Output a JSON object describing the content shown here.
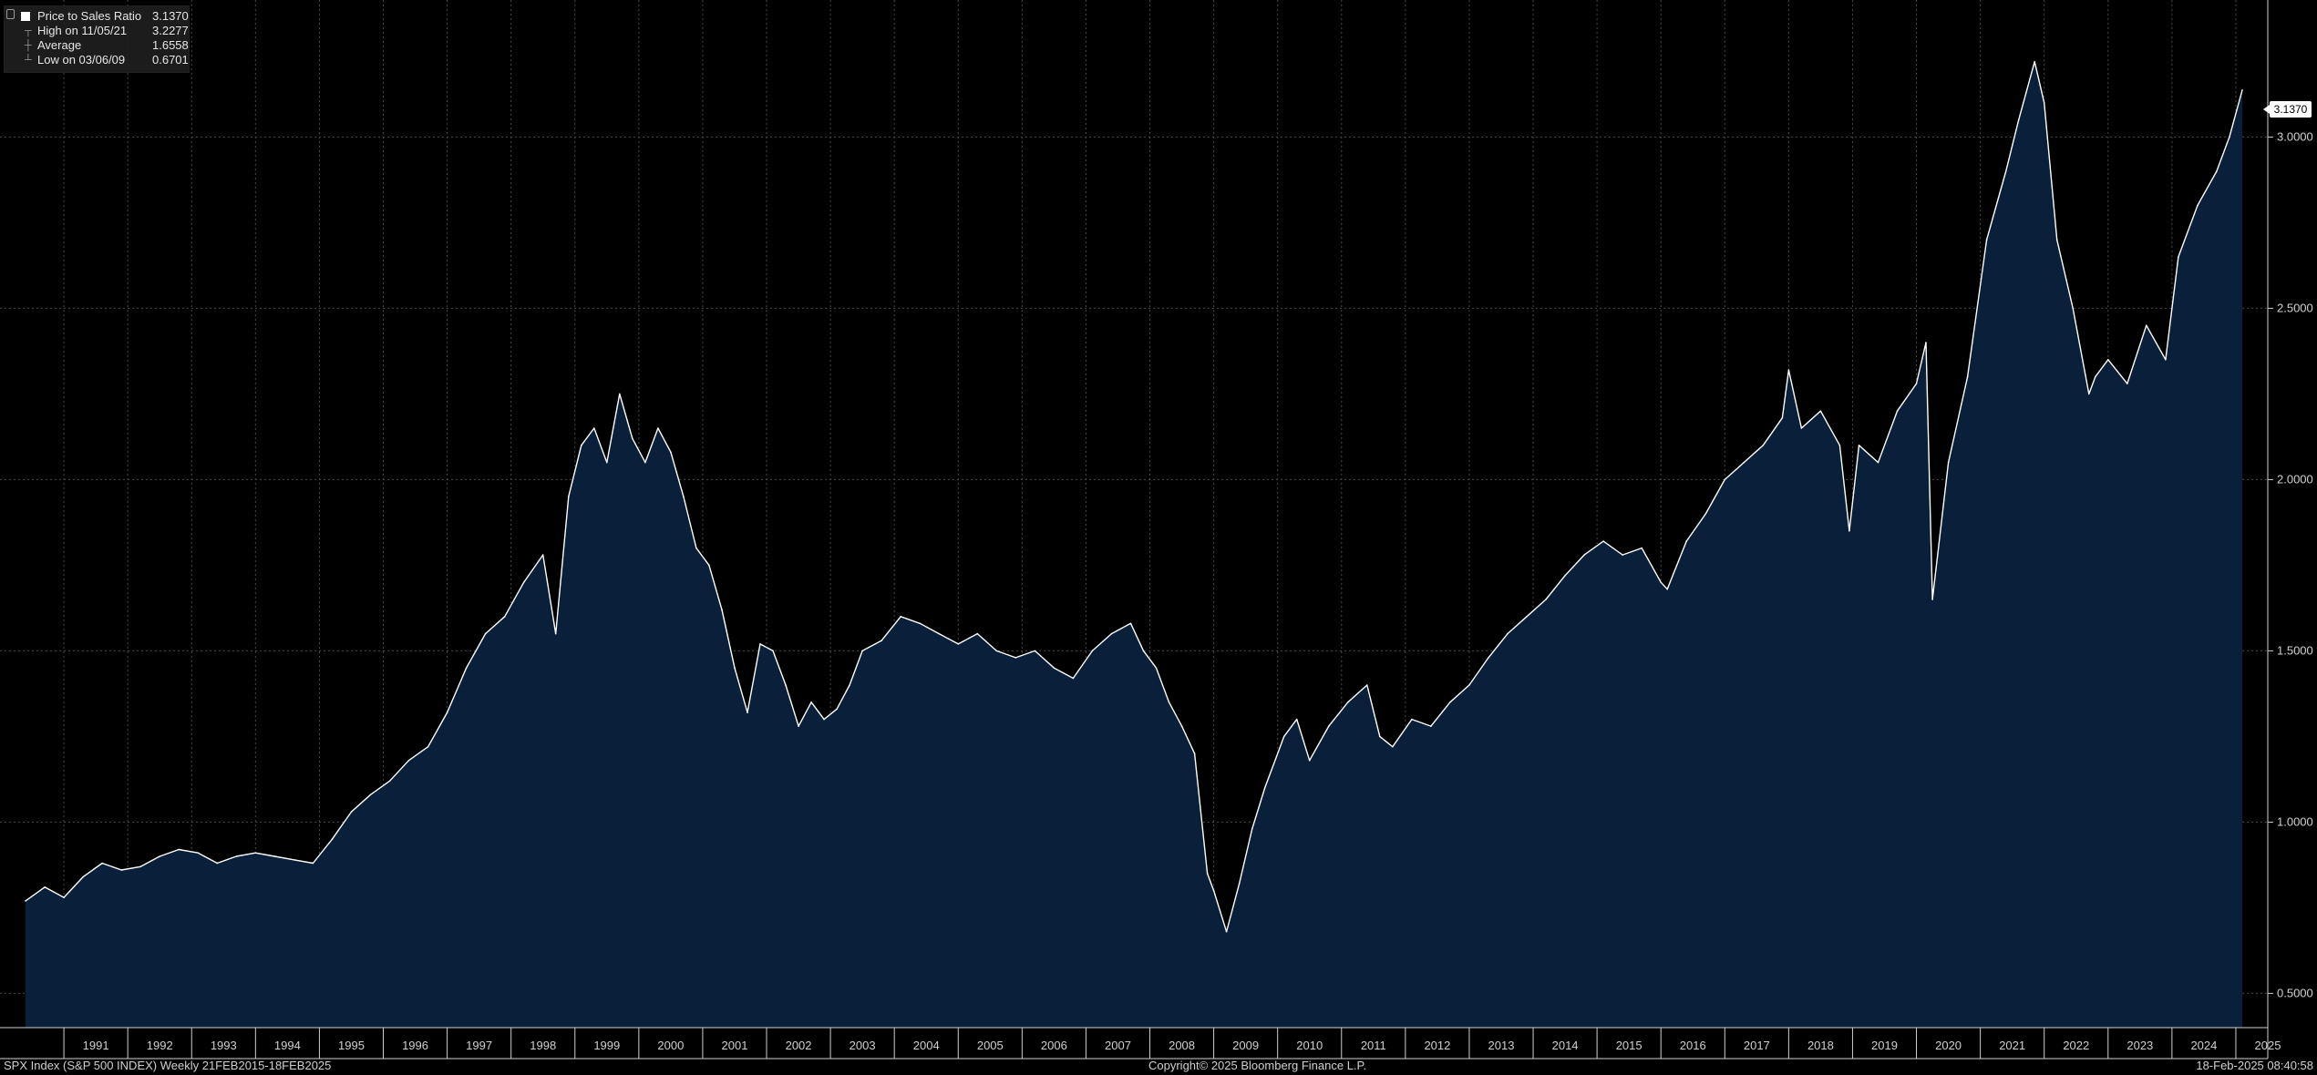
{
  "legend": {
    "series": {
      "label": "Price to Sales Ratio",
      "value": "3.1370"
    },
    "high": {
      "label": "High on 11/05/21",
      "value": "3.2277"
    },
    "average": {
      "label": "Average",
      "value": "1.6558"
    },
    "low": {
      "label": "Low on 03/06/09",
      "value": "0.6701"
    }
  },
  "last_value_badge": "3.1370",
  "footer": {
    "left": "SPX Index (S&P 500 INDEX)  Weekly 21FEB2015-18FEB2025",
    "center": "Copyright© 2025 Bloomberg Finance L.P.",
    "right": "18-Feb-2025 08:40:58"
  },
  "colors": {
    "background": "#000000",
    "area_fill": "#0a1f3a",
    "line": "#ffffff",
    "grid": "#4a4a4a",
    "axis": "#cfcfcf"
  },
  "chart_data": {
    "type": "area",
    "series": [
      {
        "name": "Price to Sales Ratio",
        "x": [
          1990.4,
          1990.7,
          1991.0,
          1991.3,
          1991.6,
          1991.9,
          1992.2,
          1992.5,
          1992.8,
          1993.1,
          1993.4,
          1993.7,
          1994.0,
          1994.3,
          1994.6,
          1994.9,
          1995.2,
          1995.5,
          1995.8,
          1996.1,
          1996.4,
          1996.7,
          1997.0,
          1997.3,
          1997.6,
          1997.9,
          1998.2,
          1998.5,
          1998.7,
          1998.9,
          1999.1,
          1999.3,
          1999.5,
          1999.7,
          1999.9,
          2000.1,
          2000.3,
          2000.5,
          2000.7,
          2000.9,
          2001.1,
          2001.3,
          2001.5,
          2001.7,
          2001.9,
          2002.1,
          2002.3,
          2002.5,
          2002.7,
          2002.9,
          2003.1,
          2003.3,
          2003.5,
          2003.8,
          2004.1,
          2004.4,
          2004.7,
          2005.0,
          2005.3,
          2005.6,
          2005.9,
          2006.2,
          2006.5,
          2006.8,
          2007.1,
          2007.4,
          2007.7,
          2007.9,
          2008.1,
          2008.3,
          2008.5,
          2008.7,
          2008.9,
          2009.0,
          2009.2,
          2009.4,
          2009.6,
          2009.8,
          2010.1,
          2010.3,
          2010.5,
          2010.8,
          2011.1,
          2011.4,
          2011.6,
          2011.8,
          2012.1,
          2012.4,
          2012.7,
          2013.0,
          2013.3,
          2013.6,
          2013.9,
          2014.2,
          2014.5,
          2014.8,
          2015.1,
          2015.4,
          2015.7,
          2016.0,
          2016.1,
          2016.4,
          2016.7,
          2017.0,
          2017.3,
          2017.6,
          2017.9,
          2018.0,
          2018.2,
          2018.5,
          2018.8,
          2018.95,
          2019.1,
          2019.4,
          2019.7,
          2020.0,
          2020.15,
          2020.25,
          2020.5,
          2020.8,
          2021.1,
          2021.4,
          2021.6,
          2021.85,
          2022.0,
          2022.2,
          2022.45,
          2022.7,
          2022.8,
          2023.0,
          2023.3,
          2023.6,
          2023.9,
          2024.1,
          2024.4,
          2024.7,
          2024.9,
          2025.1
        ],
        "values": [
          0.77,
          0.81,
          0.78,
          0.84,
          0.88,
          0.86,
          0.87,
          0.9,
          0.92,
          0.91,
          0.88,
          0.9,
          0.91,
          0.9,
          0.89,
          0.88,
          0.95,
          1.03,
          1.08,
          1.12,
          1.18,
          1.22,
          1.32,
          1.45,
          1.55,
          1.6,
          1.7,
          1.78,
          1.55,
          1.95,
          2.1,
          2.15,
          2.05,
          2.25,
          2.12,
          2.05,
          2.15,
          2.08,
          1.95,
          1.8,
          1.75,
          1.62,
          1.45,
          1.32,
          1.52,
          1.5,
          1.4,
          1.28,
          1.35,
          1.3,
          1.33,
          1.4,
          1.5,
          1.53,
          1.6,
          1.58,
          1.55,
          1.52,
          1.55,
          1.5,
          1.48,
          1.5,
          1.45,
          1.42,
          1.5,
          1.55,
          1.58,
          1.5,
          1.45,
          1.35,
          1.28,
          1.2,
          0.85,
          0.8,
          0.68,
          0.82,
          0.98,
          1.1,
          1.25,
          1.3,
          1.18,
          1.28,
          1.35,
          1.4,
          1.25,
          1.22,
          1.3,
          1.28,
          1.35,
          1.4,
          1.48,
          1.55,
          1.6,
          1.65,
          1.72,
          1.78,
          1.82,
          1.78,
          1.8,
          1.7,
          1.68,
          1.82,
          1.9,
          2.0,
          2.05,
          2.1,
          2.18,
          2.32,
          2.15,
          2.2,
          2.1,
          1.85,
          2.1,
          2.05,
          2.2,
          2.28,
          2.4,
          1.65,
          2.05,
          2.3,
          2.7,
          2.9,
          3.05,
          3.22,
          3.1,
          2.7,
          2.5,
          2.25,
          2.3,
          2.35,
          2.28,
          2.45,
          2.35,
          2.65,
          2.8,
          2.9,
          3.0,
          3.137
        ],
        "area": true
      }
    ],
    "title": "",
    "xlabel": "",
    "ylabel": "",
    "xlim": [
      1990.0,
      2025.5
    ],
    "ylim": [
      0.4,
      3.4
    ],
    "x_ticks": [
      "1991",
      "1992",
      "1993",
      "1994",
      "1995",
      "1996",
      "1997",
      "1998",
      "1999",
      "2000",
      "2001",
      "2002",
      "2003",
      "2004",
      "2005",
      "2006",
      "2007",
      "2008",
      "2009",
      "2010",
      "2011",
      "2012",
      "2013",
      "2014",
      "2015",
      "2016",
      "2017",
      "2018",
      "2019",
      "2020",
      "2021",
      "2022",
      "2023",
      "2024",
      "2025"
    ],
    "y_ticks": [
      "0.5000",
      "1.0000",
      "1.5000",
      "2.0000",
      "2.5000",
      "3.0000"
    ],
    "y_axis_side": "right",
    "grid": true,
    "legend_position": "top-left"
  }
}
